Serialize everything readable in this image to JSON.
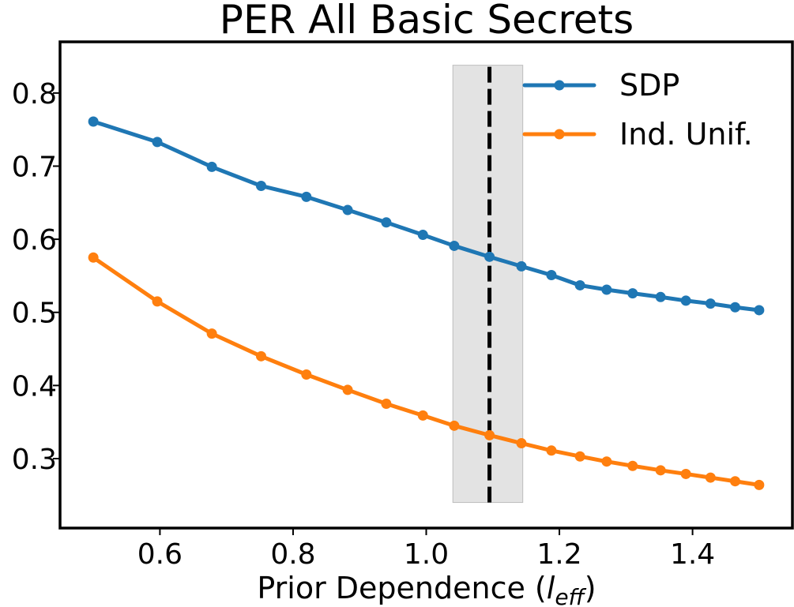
{
  "chart_data": {
    "type": "line",
    "title": "PER All Basic Secrets",
    "xlabel_main": "Prior Dependence (",
    "xlabel_symbol": "l",
    "xlabel_subscript": "eff",
    "xlabel_close": ")",
    "ylabel": "",
    "xlim": [
      0.45,
      1.55
    ],
    "ylim": [
      0.205,
      0.87
    ],
    "x_ticks": [
      0.6,
      0.8,
      1.0,
      1.2,
      1.4
    ],
    "x_tick_labels": [
      "0.6",
      "0.8",
      "1.0",
      "1.2",
      "1.4"
    ],
    "y_ticks": [
      0.3,
      0.4,
      0.5,
      0.6,
      0.7,
      0.8
    ],
    "y_tick_labels": [
      "0.3",
      "0.4",
      "0.5",
      "0.6",
      "0.7",
      "0.8"
    ],
    "grid": false,
    "legend_position": "top-right",
    "x": [
      0.5,
      0.596,
      0.678,
      0.752,
      0.82,
      0.882,
      0.94,
      0.995,
      1.042,
      1.095,
      1.143,
      1.188,
      1.231,
      1.271,
      1.31,
      1.352,
      1.39,
      1.427,
      1.464,
      1.5
    ],
    "series": [
      {
        "name": "SDP",
        "color": "#1f77b4",
        "values": [
          0.761,
          0.733,
          0.699,
          0.673,
          0.658,
          0.64,
          0.623,
          0.606,
          0.591,
          0.576,
          0.563,
          0.551,
          0.537,
          0.531,
          0.526,
          0.521,
          0.516,
          0.512,
          0.507,
          0.503
        ]
      },
      {
        "name": "Ind. Unif.",
        "color": "#ff7f0e",
        "values": [
          0.575,
          0.515,
          0.471,
          0.44,
          0.415,
          0.394,
          0.375,
          0.359,
          0.345,
          0.332,
          0.321,
          0.311,
          0.303,
          0.296,
          0.29,
          0.284,
          0.279,
          0.274,
          0.269,
          0.264
        ]
      }
    ],
    "vertical_line": {
      "x": 1.095,
      "style": "dashed",
      "color": "#000000"
    },
    "shaded_band": {
      "x_from": 1.04,
      "x_to": 1.145,
      "y_from": 0.24,
      "y_to": 0.838,
      "color": "#d9d9d9"
    }
  }
}
